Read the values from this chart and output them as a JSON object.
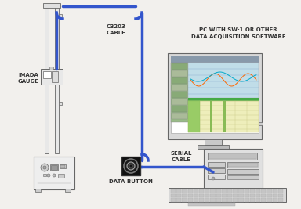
{
  "bg_color": "#f2f0ed",
  "labels": {
    "imada_gauge": "IMADA\nGAUGE",
    "cb203_cable": "CB203\nCABLE",
    "serial_cable": "SERIAL\nCABLE",
    "data_button": "DATA BUTTON",
    "pc_label": "PC WITH SW-1 OR OTHER\nDATA ACQUISITION SOFTWARE"
  },
  "label_fontsize": 5.0,
  "cable_color": "#3355cc",
  "line_color": "#666666",
  "screen_colors": {
    "title_bar": "#7799aa",
    "graph_bg": "#aaddee",
    "table_yellow": "#eeeebb",
    "table_green": "#99cc88",
    "monitor_outer": "#cccccc",
    "monitor_bezel": "#dddddd"
  }
}
